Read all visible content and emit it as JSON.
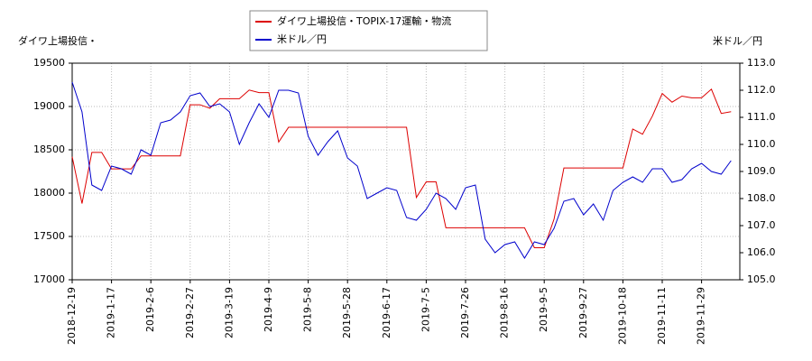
{
  "chart_data": {
    "type": "line",
    "y_label": "ダイワ上場投信・",
    "y2_label": "米ドル／円",
    "categories": [
      "2018-12-19",
      null,
      null,
      null,
      "2019-1-17",
      null,
      null,
      null,
      "2019-2-6",
      null,
      null,
      null,
      "2019-2-27",
      null,
      null,
      null,
      "2019-3-19",
      null,
      null,
      null,
      "2019-4-9",
      null,
      null,
      null,
      "2019-5-8",
      null,
      null,
      null,
      "2019-5-28",
      null,
      null,
      null,
      "2019-6-17",
      null,
      null,
      null,
      "2019-7-5",
      null,
      null,
      null,
      "2019-7-26",
      null,
      null,
      null,
      "2019-8-16",
      null,
      null,
      null,
      "2019-9-5",
      null,
      null,
      null,
      "2019-9-27",
      null,
      null,
      null,
      "2019-10-18",
      null,
      null,
      null,
      "2019-11-11",
      null,
      null,
      null,
      "2019-11-29",
      null,
      null,
      null
    ],
    "series": [
      {
        "name": "ダイワ上場投信・TOPIX-17運輸・物流",
        "color": "#dd0000",
        "axis": "y",
        "values": [
          18420,
          17880,
          18470,
          18470,
          18280,
          18280,
          18280,
          18430,
          18430,
          18430,
          18430,
          18430,
          19020,
          19020,
          18980,
          19090,
          19090,
          19090,
          19190,
          19160,
          19160,
          18590,
          18760,
          18760,
          18760,
          18760,
          18760,
          18760,
          18760,
          18760,
          18760,
          18760,
          18760,
          18760,
          18760,
          17950,
          18130,
          18130,
          17600,
          17600,
          17600,
          17600,
          17600,
          17600,
          17600,
          17600,
          17600,
          17370,
          17370,
          17700,
          18290,
          18290,
          18290,
          18290,
          18290,
          18290,
          18290,
          18740,
          18680,
          18890,
          19150,
          19050,
          19120,
          19100,
          19100,
          19200,
          18920,
          18940
        ]
      },
      {
        "name": "米ドル／円",
        "color": "#0000cc",
        "axis": "y2",
        "values": [
          112.3,
          111.2,
          108.5,
          108.3,
          109.2,
          109.1,
          108.9,
          109.8,
          109.6,
          110.8,
          110.9,
          111.2,
          111.8,
          111.9,
          111.4,
          111.5,
          111.2,
          110.0,
          110.8,
          111.5,
          111.0,
          112.0,
          112.0,
          111.9,
          110.3,
          109.6,
          110.1,
          110.5,
          109.5,
          109.2,
          108.0,
          108.2,
          108.4,
          108.3,
          107.3,
          107.2,
          107.6,
          108.2,
          108.0,
          107.6,
          108.4,
          108.5,
          106.5,
          106.0,
          106.3,
          106.4,
          105.8,
          106.4,
          106.3,
          106.9,
          107.9,
          108.0,
          107.4,
          107.8,
          107.2,
          108.3,
          108.6,
          108.8,
          108.6,
          109.1,
          109.1,
          108.6,
          108.7,
          109.1,
          109.3,
          109.0,
          108.9,
          109.4
        ]
      }
    ],
    "ylim": [
      17000,
      19500
    ],
    "yticks": [
      17000,
      17500,
      18000,
      18500,
      19000,
      19500
    ],
    "y2lim": [
      105,
      113
    ],
    "y2ticks": [
      {
        "value": 105,
        "label": "105.0"
      },
      {
        "value": 106,
        "label": "106.0"
      },
      {
        "value": 107,
        "label": "107.0"
      },
      {
        "value": 108,
        "label": "108.0"
      },
      {
        "value": 109,
        "label": "109.0"
      },
      {
        "value": 110,
        "label": "110.0"
      },
      {
        "value": 111,
        "label": "111.0"
      },
      {
        "value": 112,
        "label": "112.0"
      },
      {
        "value": 113,
        "label": "113.0"
      }
    ],
    "grid": true
  }
}
